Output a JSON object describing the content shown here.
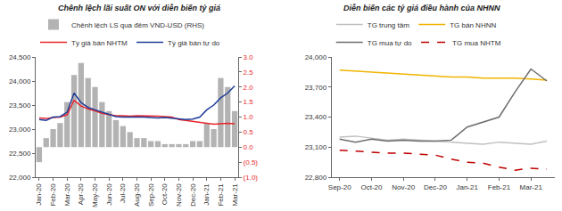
{
  "chart_data": [
    {
      "type": "line",
      "title": "Chênh lệch lãi suất ON với diễn biến tỷ giá",
      "categories": [
        "Jan-20",
        null,
        "Feb-20",
        null,
        "Mar-20",
        null,
        "Apr-20",
        null,
        "May-20",
        null,
        "Jun-20",
        null,
        "Jul-20",
        null,
        "Aug-20",
        null,
        "Sep-20",
        null,
        "Oct-20",
        null,
        "Nov-20",
        null,
        "Dec-20",
        null,
        "Jan-21",
        null,
        "Feb-21",
        null,
        "Mar-21"
      ],
      "series": [
        {
          "name": "Chênh lệch LS qua đêm VND-USD (RHS)",
          "type": "bar",
          "axis": "y2",
          "color": "#b3b3b3",
          "values": [
            -0.5,
            0.3,
            0.6,
            0.8,
            1.5,
            2.4,
            2.8,
            2.3,
            2.0,
            1.5,
            1.2,
            0.9,
            0.7,
            0.5,
            0.3,
            0.3,
            0.2,
            0.2,
            0.1,
            0.1,
            0.1,
            0.1,
            0.2,
            0.2,
            0.8,
            0.6,
            2.3,
            2.0,
            1.2
          ]
        },
        {
          "name": "Tỷ giá bán NHTM",
          "type": "line",
          "color": "#e8262c",
          "values": [
            23230,
            23220,
            23240,
            23250,
            23300,
            23600,
            23480,
            23420,
            23380,
            23330,
            23300,
            23280,
            23280,
            23270,
            23280,
            23280,
            23270,
            23270,
            23260,
            23250,
            23200,
            23180,
            23150,
            23140,
            23120,
            23100,
            23110,
            23120,
            23110
          ]
        },
        {
          "name": "Tỷ giá bán tự do",
          "type": "line",
          "color": "#1f3d99",
          "values": [
            23200,
            23180,
            23250,
            23260,
            23350,
            23750,
            23550,
            23450,
            23400,
            23350,
            23300,
            23260,
            23250,
            23250,
            23260,
            23250,
            23240,
            23230,
            23240,
            23230,
            23220,
            23200,
            23210,
            23250,
            23400,
            23500,
            23650,
            23750,
            23900
          ]
        }
      ],
      "ylim": [
        22000,
        24500
      ],
      "yticks": [
        {
          "value": 22000,
          "label": "22,000"
        },
        {
          "value": 22500,
          "label": "22,500"
        },
        {
          "value": 23000,
          "label": "23,000"
        },
        {
          "value": 23500,
          "label": "23,500"
        },
        {
          "value": 24000,
          "label": "24,000"
        },
        {
          "value": 24500,
          "label": "24,500"
        }
      ],
      "y2lim": [
        -1.0,
        3.0
      ],
      "y2ticks": [
        {
          "value": -1.0,
          "label": "(1.0)"
        },
        {
          "value": -0.5,
          "label": "(0.5)"
        },
        {
          "value": 0.0,
          "label": "0.0"
        },
        {
          "value": 0.5,
          "label": "0.5"
        },
        {
          "value": 1.0,
          "label": "1.0"
        },
        {
          "value": 1.5,
          "label": "1.5"
        },
        {
          "value": 2.0,
          "label": "2.0"
        },
        {
          "value": 2.5,
          "label": "2.5"
        },
        {
          "value": 3.0,
          "label": "3.0"
        }
      ],
      "grid": false,
      "legend": "top"
    },
    {
      "type": "line",
      "title": "Diễn biến các tỷ giá điều hành của NHNN",
      "categories": [
        "Sep-20",
        null,
        "Oct-20",
        null,
        "Nov-20",
        null,
        "Dec-20",
        null,
        "Jan-21",
        null,
        "Feb-21",
        null,
        "Mar-21",
        null
      ],
      "series": [
        {
          "name": "TG trung tâm",
          "color": "#c0c0c0",
          "line_style": "solid",
          "values": [
            23200,
            23210,
            23190,
            23170,
            23180,
            23170,
            23160,
            23150,
            23140,
            23130,
            23150,
            23140,
            23130,
            23160
          ]
        },
        {
          "name": "TG bán NHNN",
          "color": "#f0b400",
          "line_style": "solid",
          "values": [
            23870,
            23860,
            23850,
            23840,
            23830,
            23820,
            23810,
            23800,
            23800,
            23790,
            23790,
            23790,
            23780,
            23770
          ]
        },
        {
          "name": "TG mua tự do",
          "color": "#6e6e6e",
          "line_style": "solid",
          "values": [
            23180,
            23150,
            23180,
            23160,
            23170,
            23160,
            23160,
            23170,
            23300,
            23350,
            23400,
            23650,
            23880,
            23760
          ]
        },
        {
          "name": "TG mua NHTM",
          "color": "#c00000",
          "line_style": "dashed",
          "values": [
            23070,
            23060,
            23050,
            23040,
            23040,
            23030,
            23020,
            22980,
            22950,
            22940,
            22900,
            22870,
            22890,
            22880
          ]
        }
      ],
      "ylim": [
        22800,
        24000
      ],
      "yticks": [
        {
          "value": 22800,
          "label": "22,800"
        },
        {
          "value": 23100,
          "label": "23,100"
        },
        {
          "value": 23400,
          "label": "23,400"
        },
        {
          "value": 23700,
          "label": "23,700"
        },
        {
          "value": 24000,
          "label": "24,000"
        }
      ],
      "grid": false,
      "legend": "top"
    }
  ]
}
